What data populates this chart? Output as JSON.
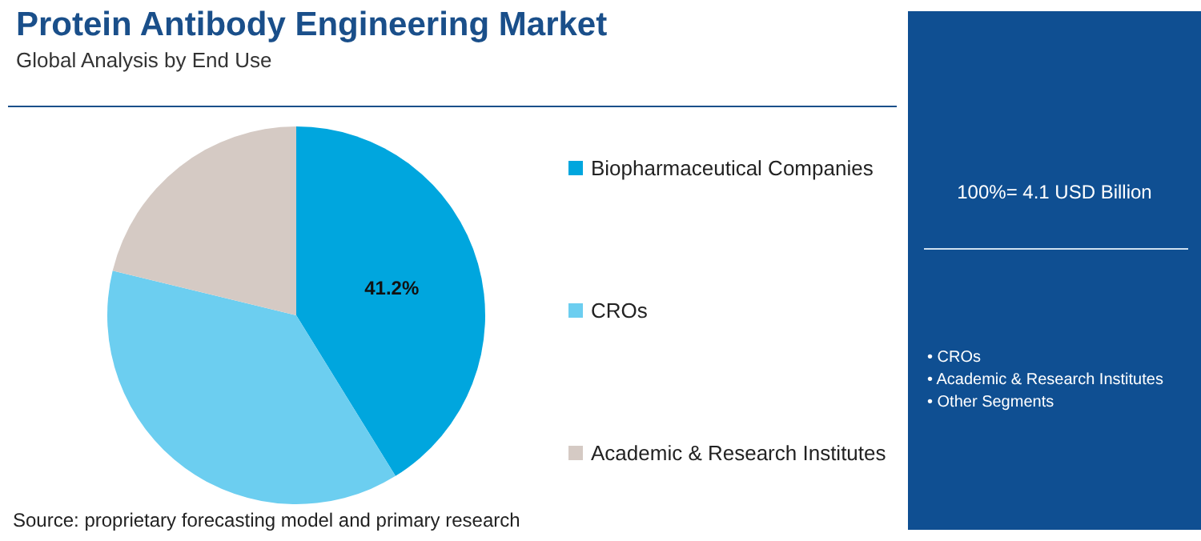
{
  "chart_data": {
    "type": "pie",
    "title": "Protein Antibody Engineering Market",
    "subtitle": "Global Analysis by End Use",
    "categories": [
      "Biopharmaceutical Companies",
      "CROs",
      "Academic & Research Institutes"
    ],
    "values": [
      41.2,
      37.6,
      21.2
    ],
    "colors": [
      "#00a6de",
      "#6ccef0",
      "#d5cac4"
    ],
    "value_labels": [
      "41.2%",
      null,
      null
    ],
    "legend": "right",
    "annotations": [
      "100%= 4.1 USD Billion",
      "• CROs",
      "• Academic & Research Institutes",
      "• Other Segments",
      "Source: proprietary forecasting model and primary research"
    ]
  }
}
